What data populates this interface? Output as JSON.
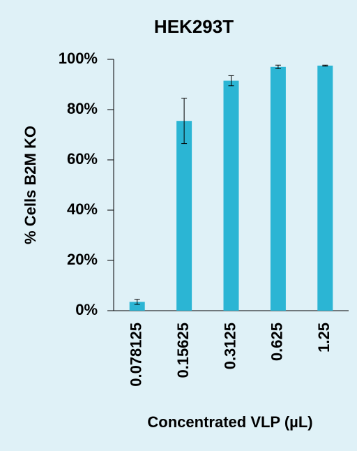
{
  "chart_data": {
    "type": "bar",
    "title": "HEK293T",
    "x_label": "Concentrated VLP (µL)",
    "y_label": "% Cells B2M KO",
    "categories": [
      "0.078125",
      "0.15625",
      "0.3125",
      "0.625",
      "1.25"
    ],
    "values": [
      3.5,
      75.5,
      91.5,
      97,
      97.5
    ],
    "errors": [
      1,
      9,
      2,
      0.7,
      0.2
    ],
    "color": "#2bb5d4",
    "ylim": [
      0,
      100
    ],
    "yticks": [
      {
        "value": 0,
        "label": "0%"
      },
      {
        "value": 20,
        "label": "20%"
      },
      {
        "value": 40,
        "label": "40%"
      },
      {
        "value": 60,
        "label": "60%"
      },
      {
        "value": 80,
        "label": "80%"
      },
      {
        "value": 100,
        "label": "100%"
      }
    ],
    "grid": false
  }
}
